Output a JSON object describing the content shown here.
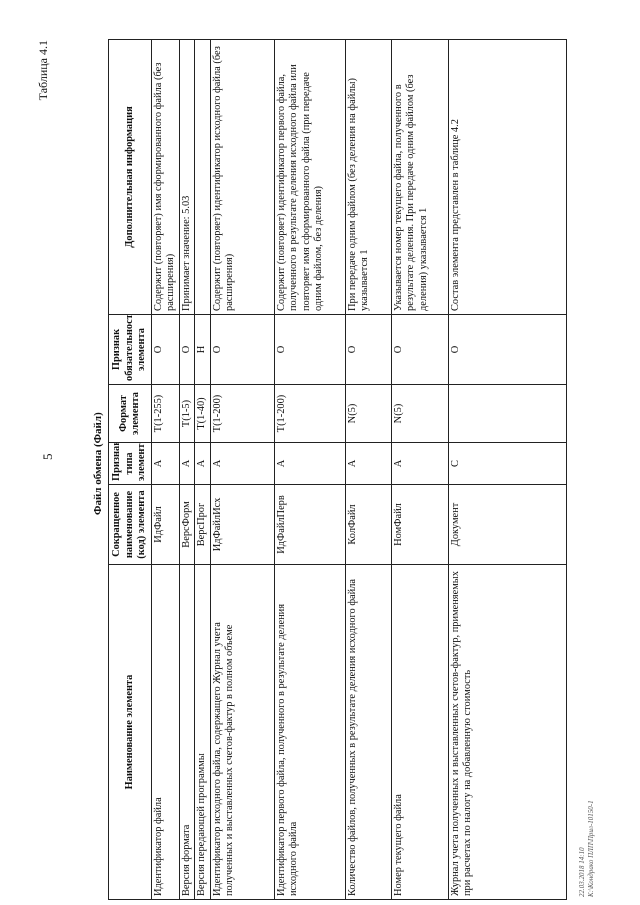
{
  "page_number": "5",
  "table_label": "Таблица 4.1",
  "table_title": "Файл обмена (Файл)",
  "columns": [
    "Наименование элемента",
    "Сокращенное наименование (код) элемента",
    "Признак типа элемента",
    "Формат элемента",
    "Признак обязательности элемента",
    "Дополнительная информация"
  ],
  "rows": [
    {
      "name": "Идентификатор файла",
      "code": "ИдФайл",
      "type": "А",
      "format": "T(1-255)",
      "req": "О",
      "info": "Содержит (повторяет) имя сформированного файла (без расширения)"
    },
    {
      "name": "Версия формата",
      "code": "ВерсФорм",
      "type": "А",
      "format": "T(1-5)",
      "req": "О",
      "info": "Принимает значение: 5.03"
    },
    {
      "name": "Версия передающей программы",
      "code": "ВерсПрог",
      "type": "А",
      "format": "T(1-40)",
      "req": "Н",
      "info": ""
    },
    {
      "name": "Идентификатор исходного файла, содержащего Журнал учета полученных и выставленных счетов-фактур в полном объеме",
      "code": "ИдФайлИсх",
      "type": "А",
      "format": "T(1-200)",
      "req": "О",
      "info": "Содержит (повторяет) идентификатор исходного файла (без расширения)"
    },
    {
      "name": "Идентификатор первого файла, полученного в результате деления исходного файла",
      "code": "ИдФайлПерв",
      "type": "А",
      "format": "T(1-200)",
      "req": "О",
      "info": "Содержит (повторяет) идентификатор первого файла, полученного в результате деления исходного файла или повторяет имя сформированного файла (при передаче одним файлом, без деления)"
    },
    {
      "name": "Количество файлов, полученных в результате деления исходного файла",
      "code": "КолФайл",
      "type": "А",
      "format": "N(5)",
      "req": "О",
      "info": "При передаче одним файлом (без деления на файлы) указывается 1"
    },
    {
      "name": "Номер текущего файла",
      "code": "НомФайл",
      "type": "А",
      "format": "N(5)",
      "req": "О",
      "info": "Указывается номер текущего файла, полученного в результате деления. При передаче одним файлом (без деления) указывается 1"
    },
    {
      "name": "Журнал учета полученных и выставленных счетов-фактур, применяемых при расчетах по налогу на добавленную стоимость",
      "code": "Документ",
      "type": "С",
      "format": "",
      "req": "О",
      "info": "Состав элемента представлен в таблице 4.2"
    }
  ],
  "footer": [
    "22.03.2018 14:10",
    "К:\\Кондрако ПЛП\\Прил-10150-1"
  ]
}
